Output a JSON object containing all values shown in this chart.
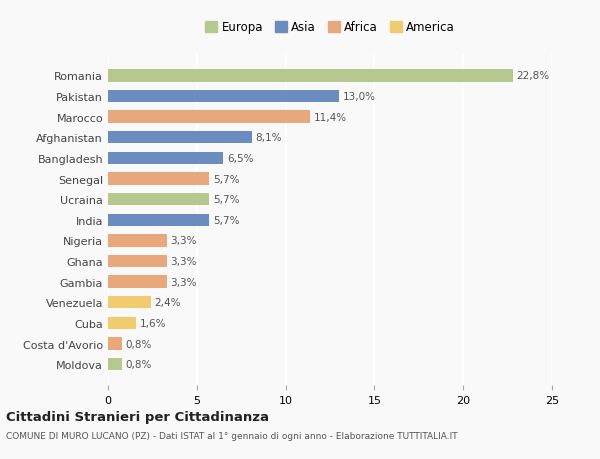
{
  "categories": [
    "Romania",
    "Pakistan",
    "Marocco",
    "Afghanistan",
    "Bangladesh",
    "Senegal",
    "Ucraina",
    "India",
    "Nigeria",
    "Ghana",
    "Gambia",
    "Venezuela",
    "Cuba",
    "Costa d'Avorio",
    "Moldova"
  ],
  "values": [
    22.8,
    13.0,
    11.4,
    8.1,
    6.5,
    5.7,
    5.7,
    5.7,
    3.3,
    3.3,
    3.3,
    2.4,
    1.6,
    0.8,
    0.8
  ],
  "labels": [
    "22,8%",
    "13,0%",
    "11,4%",
    "8,1%",
    "6,5%",
    "5,7%",
    "5,7%",
    "5,7%",
    "3,3%",
    "3,3%",
    "3,3%",
    "2,4%",
    "1,6%",
    "0,8%",
    "0,8%"
  ],
  "continents": [
    "Europa",
    "Asia",
    "Africa",
    "Asia",
    "Asia",
    "Africa",
    "Europa",
    "Asia",
    "Africa",
    "Africa",
    "Africa",
    "America",
    "America",
    "Africa",
    "Europa"
  ],
  "colors": {
    "Europa": "#b5c98e",
    "Asia": "#6b8cbf",
    "Africa": "#e8a87c",
    "America": "#f0cc6e"
  },
  "legend_order": [
    "Europa",
    "Asia",
    "Africa",
    "America"
  ],
  "title": "Cittadini Stranieri per Cittadinanza",
  "subtitle": "COMUNE DI MURO LUCANO (PZ) - Dati ISTAT al 1° gennaio di ogni anno - Elaborazione TUTTITALIA.IT",
  "xlim": [
    0,
    25
  ],
  "xticks": [
    0,
    5,
    10,
    15,
    20,
    25
  ],
  "background_color": "#f9f9f9",
  "grid_color": "#ffffff",
  "bar_height": 0.6
}
